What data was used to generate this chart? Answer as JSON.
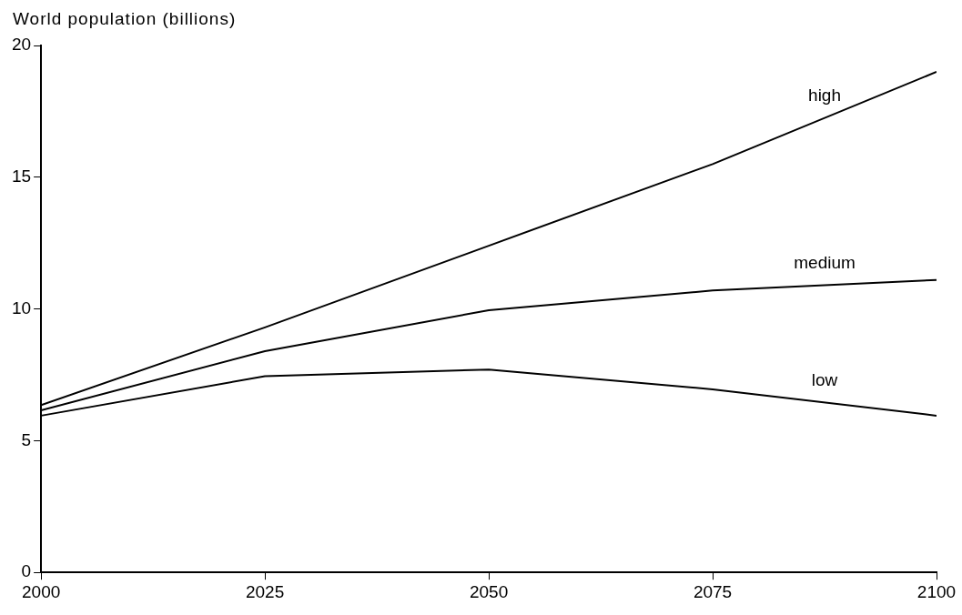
{
  "chart_data": {
    "type": "line",
    "ylabel": "World population (billions)",
    "x": [
      2000,
      2025,
      2050,
      2075,
      2100
    ],
    "series": [
      {
        "name": "high",
        "color": "#000000",
        "values": [
          6.35,
          9.3,
          12.4,
          15.5,
          19.0
        ]
      },
      {
        "name": "medium",
        "color": "#000000",
        "values": [
          6.15,
          8.4,
          9.95,
          10.7,
          11.1
        ]
      },
      {
        "name": "low",
        "color": "#000000",
        "values": [
          5.95,
          7.45,
          7.7,
          6.95,
          5.95
        ]
      }
    ],
    "xlim": [
      2000,
      2100
    ],
    "xticks": [
      2000,
      2025,
      2050,
      2075,
      2100
    ],
    "ylim": [
      0,
      20
    ],
    "yticks": [
      0,
      5,
      10,
      15,
      20
    ],
    "grid": false,
    "legend": false,
    "marker": "none",
    "line_style": "solid"
  }
}
